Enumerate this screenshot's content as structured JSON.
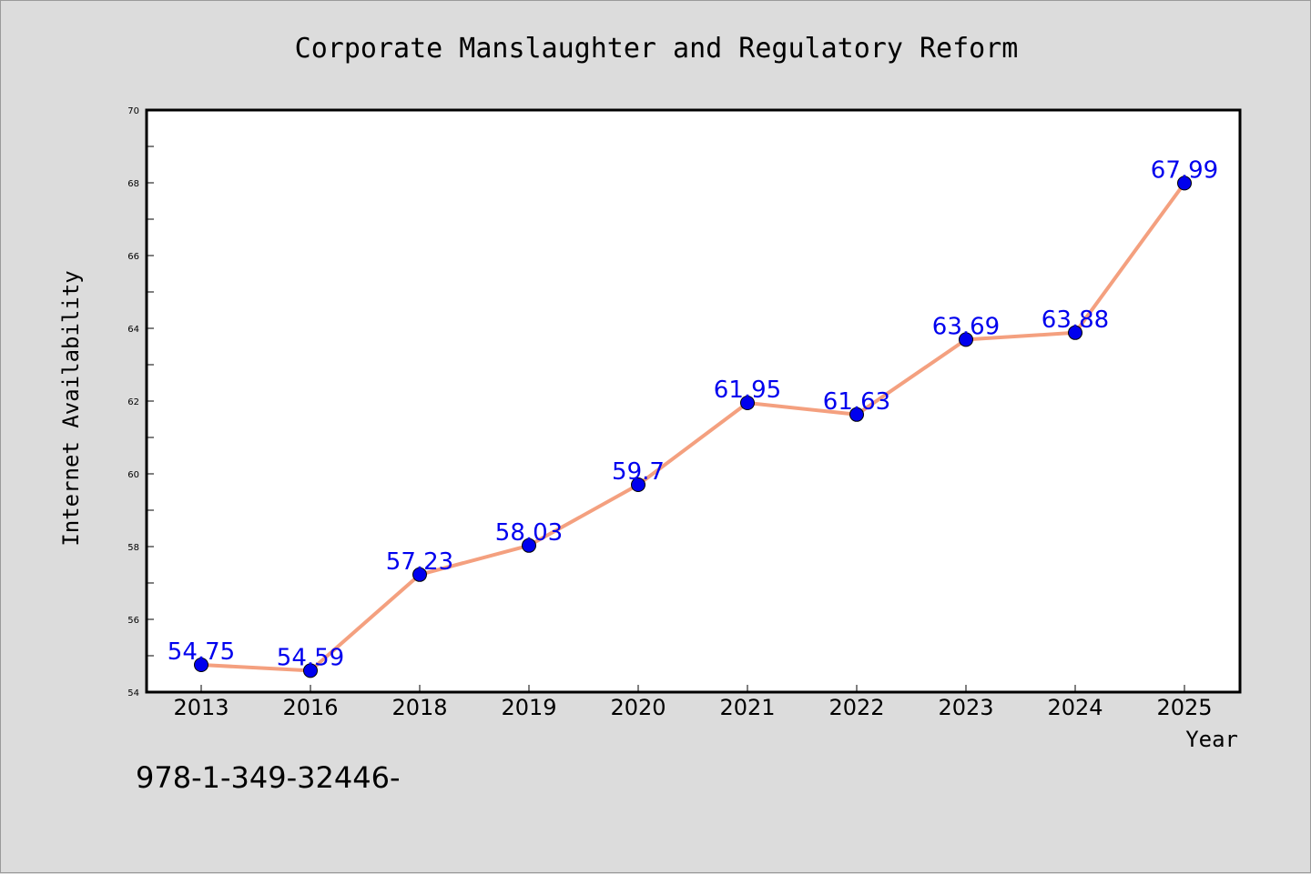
{
  "chart_data": {
    "type": "line",
    "title": "Corporate Manslaughter and Regulatory Reform",
    "xlabel": "Year",
    "ylabel": "Internet Availability",
    "categories": [
      "2013",
      "2016",
      "2018",
      "2019",
      "2020",
      "2021",
      "2022",
      "2023",
      "2024",
      "2025"
    ],
    "series": [
      {
        "values": [
          54.75,
          54.59,
          57.23,
          58.03,
          59.7,
          61.95,
          61.63,
          63.69,
          63.88,
          67.99
        ],
        "labels": [
          "54.75",
          "54.59",
          "57.23",
          "58.03",
          "59.7",
          "61.95",
          "61.63",
          "63.69",
          "63.88",
          "67.99"
        ]
      }
    ],
    "ylim": [
      54,
      70
    ],
    "yticks": [
      "54",
      "56",
      "58",
      "60",
      "62",
      "64",
      "66",
      "68",
      "70"
    ],
    "grid": false,
    "legend": "none",
    "colors": {
      "line": "#f4a07f",
      "marker": "#0000ee",
      "label": "#0000ee",
      "plot_bg": "#ffffff",
      "figure_bg": "#dcdcdc"
    }
  },
  "footer": {
    "text": "978-1-349-32446-"
  }
}
